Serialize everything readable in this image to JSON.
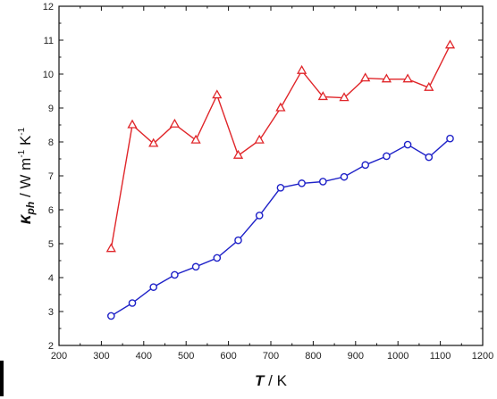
{
  "chart_data": {
    "type": "line",
    "x": [
      323,
      373,
      423,
      473,
      523,
      573,
      623,
      673,
      723,
      773,
      823,
      873,
      923,
      973,
      1023,
      1073,
      1123
    ],
    "series": [
      {
        "marker": "triangle",
        "color": "#e0262a",
        "values": [
          4.85,
          8.5,
          7.95,
          8.52,
          8.05,
          9.38,
          7.6,
          8.05,
          9.0,
          10.1,
          9.33,
          9.3,
          9.88,
          9.85,
          9.85,
          9.6,
          10.85
        ]
      },
      {
        "marker": "circle",
        "color": "#1f22c8",
        "values": [
          2.87,
          3.25,
          3.72,
          4.08,
          4.32,
          4.58,
          5.1,
          5.83,
          6.65,
          6.78,
          6.83,
          6.97,
          7.32,
          7.58,
          7.92,
          7.55,
          8.1
        ]
      }
    ],
    "xlim": [
      200,
      1200
    ],
    "ylim": [
      2,
      12
    ],
    "xticks": [
      200,
      300,
      400,
      500,
      600,
      700,
      800,
      900,
      1000,
      1100,
      1200
    ],
    "yticks": [
      2,
      3,
      4,
      5,
      6,
      7,
      8,
      9,
      10,
      11,
      12
    ],
    "xlabel": {
      "symbol": "T",
      "unit": " / K"
    },
    "ylabel": {
      "symbol": "κ",
      "subscript": "ph",
      "unit": " / W m",
      "exp1": "-1",
      "unit2": " K",
      "exp2": "-1"
    },
    "grid": false
  }
}
